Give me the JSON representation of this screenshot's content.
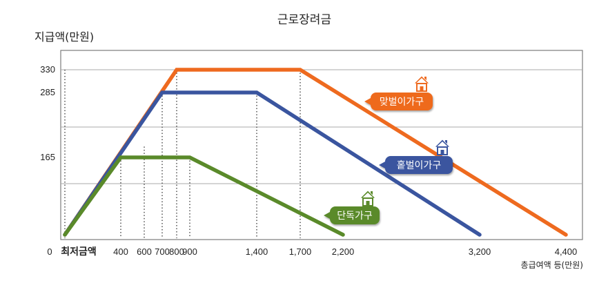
{
  "chart_data": {
    "type": "line",
    "title": "근로장려금",
    "ylabel": "지급액(만원)",
    "xlabel": "총급여액 등(만원)",
    "x_ticks": [
      "0",
      "최저금액",
      "400",
      "600",
      "700",
      "800",
      "900",
      "1,400",
      "1,700",
      "2,200",
      "3,200",
      "4,400"
    ],
    "y_ticks": [
      "330",
      "285",
      "165"
    ],
    "grid": true,
    "series": [
      {
        "name": "맞벌이가구",
        "color": "#ee6a1f",
        "points": [
          [
            0,
            0
          ],
          [
            800,
            330
          ],
          [
            1700,
            330
          ],
          [
            4400,
            0
          ]
        ]
      },
      {
        "name": "홑벌이가구",
        "color": "#3a559f",
        "points": [
          [
            0,
            0
          ],
          [
            700,
            285
          ],
          [
            1400,
            285
          ],
          [
            3200,
            0
          ]
        ]
      },
      {
        "name": "단독가구",
        "color": "#5a8a2a",
        "points": [
          [
            0,
            0
          ],
          [
            400,
            165
          ],
          [
            900,
            165
          ],
          [
            2200,
            0
          ]
        ]
      }
    ]
  }
}
